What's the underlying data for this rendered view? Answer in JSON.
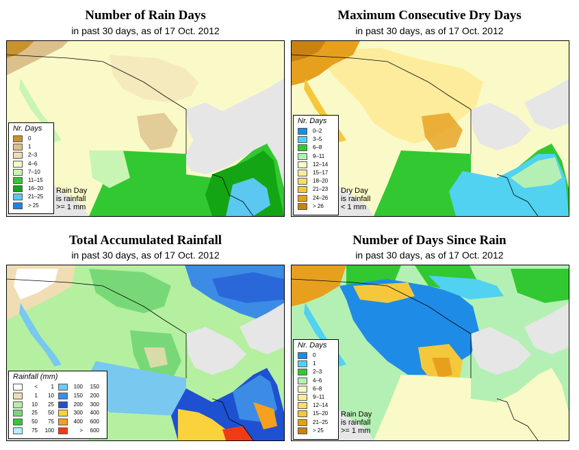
{
  "subtitle": "in past 30 days, as of  17 Oct. 2012",
  "panels": {
    "rain_days": {
      "title": "Number of Rain Days",
      "legend_title": "Nr. Days",
      "legend": [
        {
          "label": "0",
          "color": "#c8932e"
        },
        {
          "label": "1",
          "color": "#dcc08c"
        },
        {
          "label": "2–3",
          "color": "#f0ddb4"
        },
        {
          "label": "4–6",
          "color": "#fafac8"
        },
        {
          "label": "7–10",
          "color": "#c8f5b4"
        },
        {
          "label": "11–15",
          "color": "#32c832"
        },
        {
          "label": "16–20",
          "color": "#14a514"
        },
        {
          "label": "21–25",
          "color": "#5ac8f0"
        },
        {
          "label": "> 25",
          "color": "#1e82e6"
        }
      ],
      "note": [
        "Rain Day",
        "is rainfall",
        ">= 1 mm"
      ]
    },
    "dry_days": {
      "title": "Maximum Consecutive Dry Days",
      "legend_title": "Nr. Days",
      "legend": [
        {
          "label": "0–2",
          "color": "#1e8ce6"
        },
        {
          "label": "3–5",
          "color": "#50d2f0"
        },
        {
          "label": "6–8",
          "color": "#32c832"
        },
        {
          "label": "9–11",
          "color": "#b4f0b4"
        },
        {
          "label": "12–14",
          "color": "#fafac8"
        },
        {
          "label": "15–17",
          "color": "#fcec9c"
        },
        {
          "label": "18–20",
          "color": "#fadc6e"
        },
        {
          "label": "21–23",
          "color": "#f5c83c"
        },
        {
          "label": "24–26",
          "color": "#e6a01e"
        },
        {
          "label": "> 26",
          "color": "#c88214"
        }
      ],
      "note": [
        "Dry Day",
        "is rainfall",
        "< 1 mm"
      ]
    },
    "rainfall": {
      "title": "Total Accumulated Rainfall",
      "legend_title": "Rainfall (mm)",
      "legend_left": [
        {
          "lo": "<",
          "hi": "1",
          "color": "#ffffff"
        },
        {
          "lo": "1",
          "hi": "10",
          "color": "#f0ddb4"
        },
        {
          "lo": "10",
          "hi": "25",
          "color": "#b4f0a0"
        },
        {
          "lo": "25",
          "hi": "50",
          "color": "#78d878"
        },
        {
          "lo": "50",
          "hi": "75",
          "color": "#32c832"
        },
        {
          "lo": "75",
          "hi": "100",
          "color": "#b4f0ff"
        }
      ],
      "legend_right": [
        {
          "lo": "100",
          "hi": "150",
          "color": "#78c8f0"
        },
        {
          "lo": "150",
          "hi": "200",
          "color": "#3c8ce6"
        },
        {
          "lo": "200",
          "hi": "300",
          "color": "#1e50d2"
        },
        {
          "lo": "300",
          "hi": "400",
          "color": "#fad23c"
        },
        {
          "lo": "400",
          "hi": "600",
          "color": "#f5a01e"
        },
        {
          "lo": ">",
          "hi": "600",
          "color": "#f03c14"
        }
      ]
    },
    "since_rain": {
      "title": "Number of Days Since Rain",
      "legend_title": "Nr. Days",
      "legend": [
        {
          "label": "0",
          "color": "#1e8ce6"
        },
        {
          "label": "1",
          "color": "#50d2f0"
        },
        {
          "label": "2–3",
          "color": "#32c832"
        },
        {
          "label": "4–6",
          "color": "#b4f0b4"
        },
        {
          "label": "6–8",
          "color": "#fafac8"
        },
        {
          "label": "9–11",
          "color": "#fcec9c"
        },
        {
          "label": "12–14",
          "color": "#fadc6e"
        },
        {
          "label": "15–20",
          "color": "#f5c83c"
        },
        {
          "label": "21–25",
          "color": "#e6a01e"
        },
        {
          "label": "> 25",
          "color": "#c88214"
        }
      ],
      "note": [
        "Rain Day",
        "is rainfall",
        ">= 1 mm"
      ]
    }
  },
  "colors": {
    "ocean": "#e6e6e6",
    "border": "#000000"
  }
}
